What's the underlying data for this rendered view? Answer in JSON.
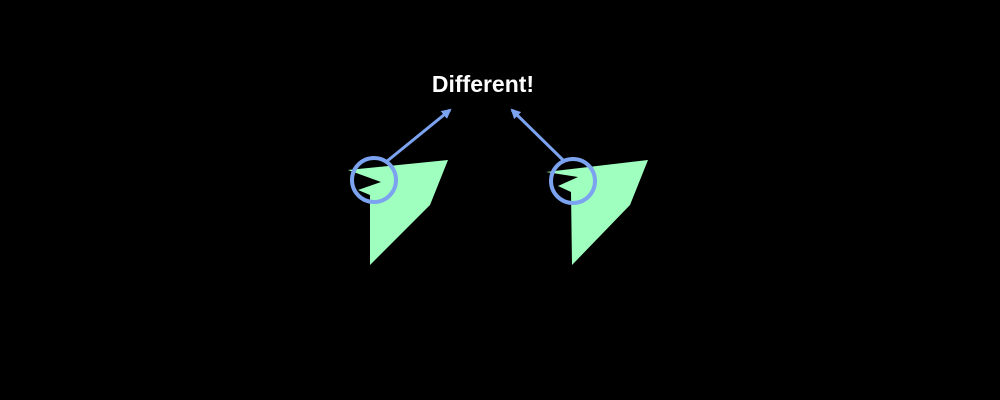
{
  "annotation": {
    "label": "Different!"
  },
  "shapes": [
    {
      "name": "left-polygon",
      "fill_color": "#9fffbf"
    },
    {
      "name": "right-polygon",
      "fill_color": "#9fffbf"
    }
  ],
  "colors": {
    "background": "#000000",
    "shape_fill": "#9fffbf",
    "highlight": "#7ba3f0",
    "label": "#ffffff"
  }
}
